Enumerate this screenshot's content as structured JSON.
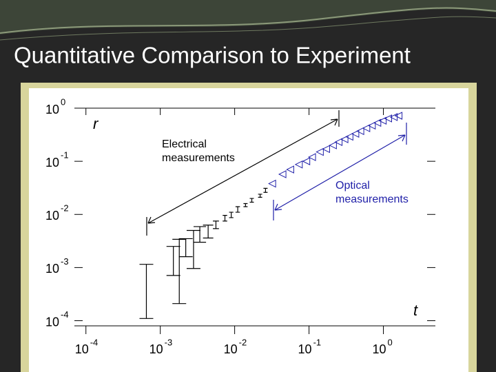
{
  "slide": {
    "title": "Quantitative Comparison to Experiment"
  },
  "chart_data": {
    "type": "scatter",
    "x_label": "t",
    "y_label": "r",
    "log_x": true,
    "log_y": true,
    "xlim": [
      7e-05,
      5
    ],
    "ylim": [
      8e-05,
      1
    ],
    "xticks": [
      {
        "value": 0.0001,
        "label": "10",
        "exponent": "-4"
      },
      {
        "value": 0.001,
        "label": "10",
        "exponent": "-3"
      },
      {
        "value": 0.01,
        "label": "10",
        "exponent": "-2"
      },
      {
        "value": 0.1,
        "label": "10",
        "exponent": "-1"
      },
      {
        "value": 1,
        "label": "10",
        "exponent": "0"
      }
    ],
    "yticks": [
      {
        "value": 0.0001,
        "label": "10",
        "exponent": "-4"
      },
      {
        "value": 0.001,
        "label": "10",
        "exponent": "-3"
      },
      {
        "value": 0.01,
        "label": "10",
        "exponent": "-2"
      },
      {
        "value": 0.1,
        "label": "10",
        "exponent": "-1"
      },
      {
        "value": 1,
        "label": "10",
        "exponent": "0"
      }
    ],
    "series": [
      {
        "marker": "errorbar",
        "color": "#000000",
        "x": [
          0.00065,
          0.0015,
          0.0018,
          0.0022,
          0.0028,
          0.0034,
          0.0044,
          0.0056,
          0.0074,
          0.009,
          0.011,
          0.014,
          0.017,
          0.022,
          0.026
        ],
        "lower": [
          0.00011,
          0.00071,
          0.00021,
          0.0016,
          0.00096,
          0.003,
          0.0036,
          0.0054,
          0.0075,
          0.0087,
          0.011,
          0.014,
          0.017,
          0.021,
          0.026
        ],
        "upper": [
          0.00115,
          0.0025,
          0.0034,
          0.0035,
          0.005,
          0.0059,
          0.0063,
          0.0075,
          0.0096,
          0.011,
          0.014,
          0.016,
          0.02,
          0.024,
          0.031
        ]
      },
      {
        "marker": "triangle-left",
        "color": "#1f1fa8",
        "x": [
          0.032,
          0.044,
          0.056,
          0.073,
          0.092,
          0.11,
          0.14,
          0.17,
          0.21,
          0.25,
          0.3,
          0.35,
          0.42,
          0.49,
          0.59,
          0.7,
          0.83,
          0.98,
          1.16,
          1.38,
          1.6
        ],
        "values": [
          0.038,
          0.057,
          0.07,
          0.087,
          0.1,
          0.12,
          0.15,
          0.17,
          0.2,
          0.23,
          0.26,
          0.29,
          0.33,
          0.37,
          0.42,
          0.47,
          0.53,
          0.58,
          0.64,
          0.68,
          0.72
        ]
      }
    ],
    "annotations": [
      {
        "lines": [
          "Electrical",
          "measurements"
        ],
        "color": "#000000"
      },
      {
        "lines": [
          "Optical",
          "measurements"
        ],
        "color": "#1f1fa8"
      }
    ]
  }
}
